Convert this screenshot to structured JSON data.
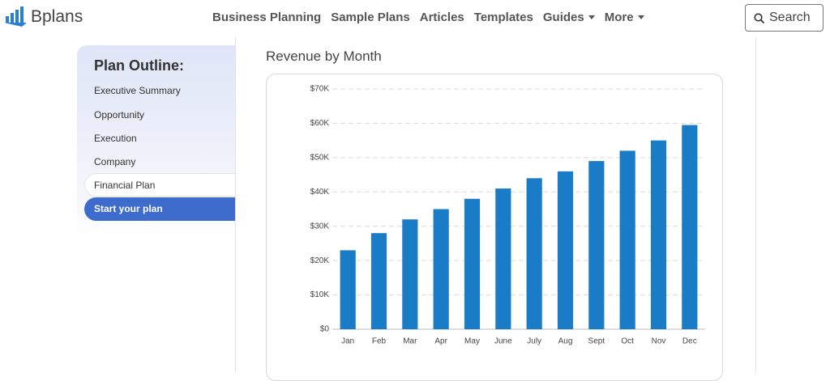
{
  "header": {
    "logo": "Bplans",
    "nav": [
      "Business Planning",
      "Sample Plans",
      "Articles",
      "Templates",
      "Guides",
      "More"
    ],
    "search": "Search"
  },
  "sidebar": {
    "title": "Plan Outline:",
    "items": [
      "Executive Summary",
      "Opportunity",
      "Execution",
      "Company",
      "Financial Plan"
    ],
    "cta": "Start your plan"
  },
  "chart_data": {
    "type": "bar",
    "title": "Revenue by Month",
    "categories": [
      "Jan",
      "Feb",
      "Mar",
      "Apr",
      "May",
      "June",
      "July",
      "Aug",
      "Sept",
      "Oct",
      "Nov",
      "Dec"
    ],
    "values": [
      23000,
      28000,
      32000,
      35000,
      38000,
      41000,
      44000,
      46000,
      49000,
      52000,
      55000,
      59500
    ],
    "color": "#1a7bc7",
    "ylim": [
      0,
      70000
    ],
    "yticks": [
      {
        "value": 0,
        "label": "$0"
      },
      {
        "value": 10000,
        "label": "$10K"
      },
      {
        "value": 20000,
        "label": "$20K"
      },
      {
        "value": 30000,
        "label": "$30K"
      },
      {
        "value": 40000,
        "label": "$40K"
      },
      {
        "value": 50000,
        "label": "$50K"
      },
      {
        "value": 60000,
        "label": "$60K"
      },
      {
        "value": 70000,
        "label": "$70K"
      }
    ],
    "grid": true
  }
}
